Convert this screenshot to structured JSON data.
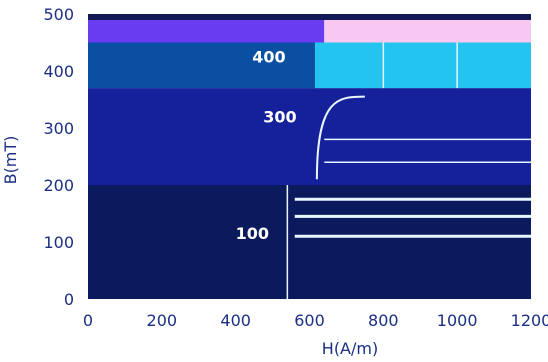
{
  "chart_data": {
    "type": "heatmap",
    "title": "",
    "xlabel": "H(A/m)",
    "ylabel": "B(mT)",
    "xlim": [
      0,
      1200
    ],
    "ylim": [
      0,
      500
    ],
    "x_ticks": [
      "0",
      "200",
      "400",
      "600",
      "800",
      "1000",
      "1200"
    ],
    "y_ticks": [
      "0",
      "100",
      "200",
      "300",
      "400",
      "500"
    ],
    "colors": {
      "band_0_200": "#0b1a5c",
      "band_200_370": "#15209b",
      "band_370_450_left": "#0b4fa3",
      "band_370_450_right": "#23c4f0",
      "band_450_500_left": "#6a3cf0",
      "band_450_500_right": "#f8c8f0",
      "band_top_strip": "#141a55",
      "grid": "#e8f6ff",
      "axis_text": "#1b2f85"
    },
    "bands": [
      {
        "y0": 0,
        "y1": 200,
        "left_color": "band_0_200",
        "right_color": "band_0_200"
      },
      {
        "y0": 200,
        "y1": 370,
        "left_color": "band_200_370",
        "right_color": "band_200_370"
      },
      {
        "y0": 370,
        "y1": 450,
        "left_color": "band_370_450_left",
        "right_color": "band_370_450_right",
        "split_x": 615
      },
      {
        "y0": 450,
        "y1": 500,
        "left_color": "band_450_500_left",
        "right_color": "band_450_500_right",
        "split_x": 640
      }
    ],
    "annotations": [
      {
        "x": 490,
        "y": 415,
        "text": "400"
      },
      {
        "x": 520,
        "y": 310,
        "text": "300"
      },
      {
        "x": 445,
        "y": 105,
        "text": "100"
      }
    ]
  }
}
